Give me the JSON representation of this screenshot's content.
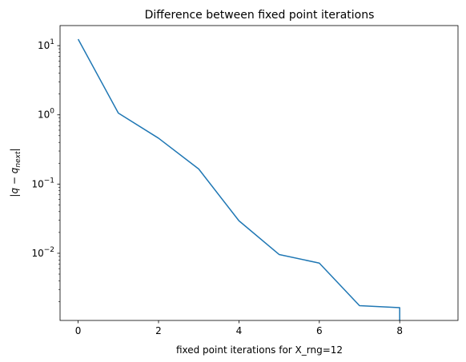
{
  "chart_data": {
    "type": "line",
    "title": "Difference between fixed point iterations",
    "xlabel": "fixed point iterations for X_rng=12",
    "ylabel_main": "|q − q",
    "ylabel_sub": "next",
    "ylabel_end": "|",
    "xlim": [
      -0.45,
      9.45
    ],
    "ylim": [
      0.00107,
      19.5
    ],
    "yscale": "log",
    "grid": false,
    "x_ticks": [
      0,
      2,
      4,
      6,
      8
    ],
    "x_tick_labels": [
      "0",
      "2",
      "4",
      "6",
      "8"
    ],
    "y_ticks": [
      0.01,
      0.1,
      1,
      10
    ],
    "y_tick_base": "10",
    "y_tick_exponents": [
      "−2",
      "−1",
      "0",
      "1"
    ],
    "series": [
      {
        "color": "#1f77b4",
        "x": [
          0,
          1,
          2,
          3,
          4,
          5,
          6,
          7,
          8,
          8
        ],
        "y": [
          12.4,
          1.06,
          0.46,
          0.165,
          0.0295,
          0.0096,
          0.0072,
          0.00175,
          0.00164,
          0.00107
        ]
      }
    ]
  }
}
